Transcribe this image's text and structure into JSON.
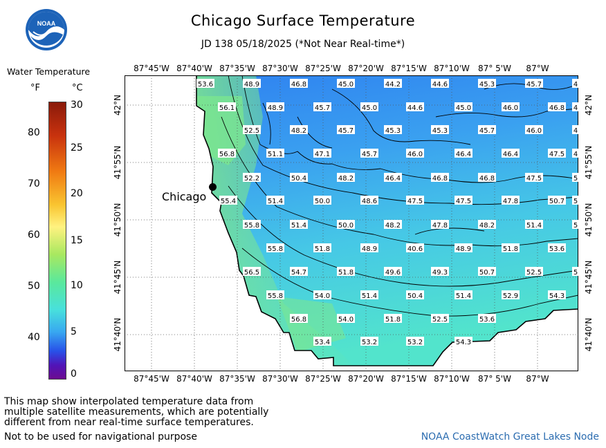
{
  "header": {
    "title": "Chicago Surface Temperature",
    "subtitle": "JD 138 05/18/2025 (*Not Near Real-time*)",
    "logo_text": "NOAA"
  },
  "legend": {
    "title": "Water Temperature",
    "unit_f": "°F",
    "unit_c": "°C",
    "f_ticks": [
      "80",
      "70",
      "60",
      "50",
      "40"
    ],
    "c_ticks": [
      "30",
      "25",
      "20",
      "15",
      "10",
      "5",
      "0"
    ]
  },
  "axes": {
    "lon_labels": [
      "87°45'W",
      "87°40'W",
      "87°35'W",
      "87°30'W",
      "87°25'W",
      "87°20'W",
      "87°15'W",
      "87°10'W",
      "87° 5'W",
      "87°W"
    ],
    "lat_labels": [
      "42°N",
      "41°55'N",
      "41°50'N",
      "41°45'N",
      "41°40'N"
    ]
  },
  "map": {
    "city_label": "Chicago",
    "temps": [
      [
        "53.6",
        "48.9",
        "46.8",
        "45.0",
        "44.2",
        "44.6",
        "45.3",
        "45.7",
        "4"
      ],
      [
        "56.1",
        "48.9",
        "45.7",
        "45.0",
        "44.6",
        "45.0",
        "46.0",
        "46.8",
        "4"
      ],
      [
        "52.5",
        "48.2",
        "45.7",
        "45.3",
        "45.3",
        "45.7",
        "46.0",
        "4"
      ],
      [
        "56.8",
        "51.1",
        "47.1",
        "45.7",
        "46.0",
        "46.4",
        "46.4",
        "47.5",
        "4"
      ],
      [
        "52.2",
        "50.4",
        "48.2",
        "46.4",
        "46.8",
        "46.8",
        "47.5",
        "5"
      ],
      [
        "55.4",
        "51.4",
        "50.0",
        "48.6",
        "47.5",
        "47.5",
        "47.8",
        "50.7",
        "5"
      ],
      [
        "55.8",
        "51.4",
        "50.0",
        "48.2",
        "47.8",
        "48.2",
        "51.4",
        "5"
      ],
      [
        "55.8",
        "51.8",
        "48.9",
        "40.6",
        "48.9",
        "51.8",
        "53.6"
      ],
      [
        "56.5",
        "54.7",
        "51.8",
        "49.6",
        "49.3",
        "50.7",
        "52.5",
        "5"
      ],
      [
        "55.8",
        "54.0",
        "51.4",
        "50.4",
        "51.4",
        "52.9",
        "54.3"
      ],
      [
        "56.8",
        "54.0",
        "51.8",
        "52.5",
        "53.6"
      ],
      [
        "53.4",
        "53.2",
        "53.2",
        "54.3"
      ]
    ]
  },
  "footer": {
    "note_line1": "This map show interpolated temperature data from",
    "note_line2": "multiple satellite measurements, which are potentially",
    "note_line3": "different from near real-time surface temperatures.",
    "nav_warning": "Not to be used for navigational purpose",
    "credit": "NOAA CoastWatch Great Lakes Node"
  },
  "colors": {
    "deep_blue": "#2e7ff0",
    "mid_blue": "#3aa6f2",
    "cyan": "#48d8e0",
    "green": "#7ee88c"
  }
}
